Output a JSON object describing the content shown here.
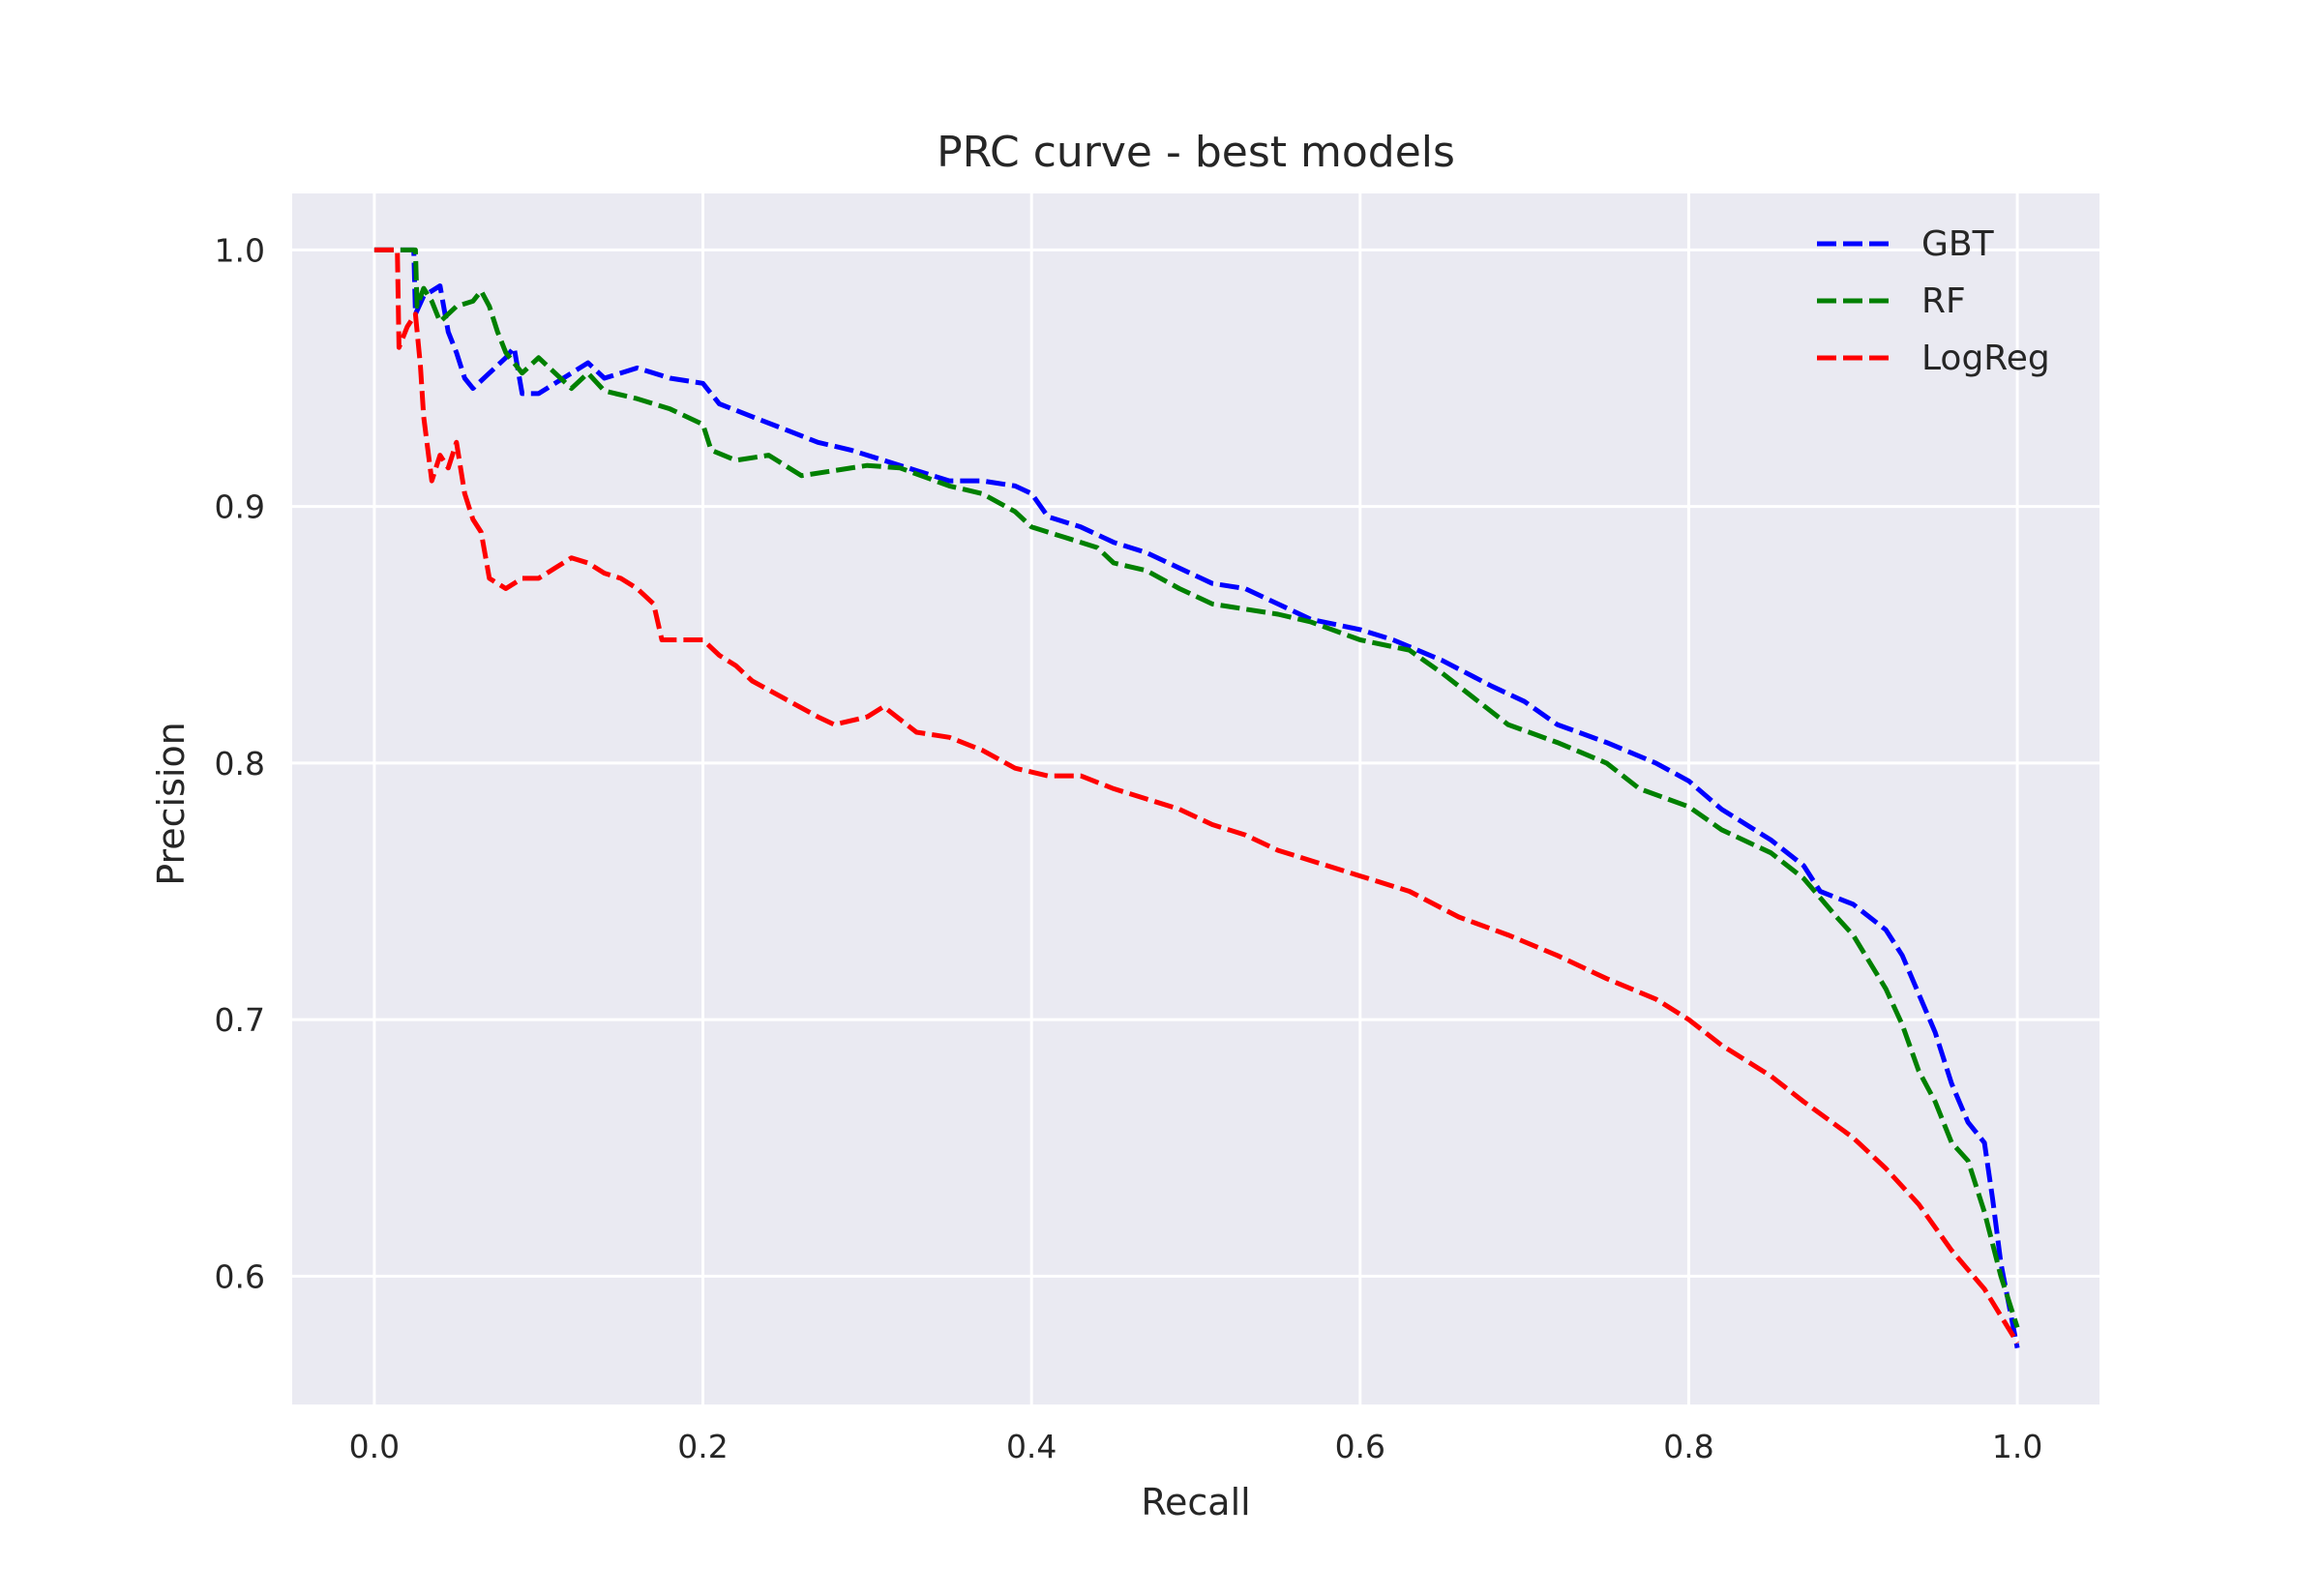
{
  "chart_data": {
    "type": "line",
    "title": "PRC curve - best models",
    "xlabel": "Recall",
    "ylabel": "Precision",
    "xlim": [
      -0.05,
      1.05
    ],
    "ylim": [
      0.55,
      1.022
    ],
    "xticks": [
      "0.0",
      "0.2",
      "0.4",
      "0.6",
      "0.8",
      "1.0"
    ],
    "xtick_values": [
      0.0,
      0.2,
      0.4,
      0.6,
      0.8,
      1.0
    ],
    "yticks": [
      "0.6",
      "0.7",
      "0.8",
      "0.9",
      "1.0"
    ],
    "ytick_values": [
      0.6,
      0.7,
      0.8,
      0.9,
      1.0
    ],
    "grid": true,
    "legend_position": "top-right",
    "plot_background": "#eaeaf2",
    "series": [
      {
        "name": "GBT",
        "color": "#0000ff",
        "style": "dashed",
        "points": [
          [
            0.0,
            1.0
          ],
          [
            0.024,
            1.0
          ],
          [
            0.025,
            0.975
          ],
          [
            0.03,
            0.982
          ],
          [
            0.04,
            0.986
          ],
          [
            0.045,
            0.968
          ],
          [
            0.05,
            0.96
          ],
          [
            0.055,
            0.95
          ],
          [
            0.06,
            0.946
          ],
          [
            0.07,
            0.952
          ],
          [
            0.08,
            0.958
          ],
          [
            0.085,
            0.962
          ],
          [
            0.09,
            0.944
          ],
          [
            0.1,
            0.944
          ],
          [
            0.11,
            0.948
          ],
          [
            0.13,
            0.956
          ],
          [
            0.14,
            0.95
          ],
          [
            0.16,
            0.954
          ],
          [
            0.18,
            0.95
          ],
          [
            0.2,
            0.948
          ],
          [
            0.21,
            0.94
          ],
          [
            0.23,
            0.935
          ],
          [
            0.25,
            0.93
          ],
          [
            0.27,
            0.925
          ],
          [
            0.29,
            0.922
          ],
          [
            0.31,
            0.918
          ],
          [
            0.33,
            0.914
          ],
          [
            0.35,
            0.91
          ],
          [
            0.37,
            0.91
          ],
          [
            0.39,
            0.908
          ],
          [
            0.4,
            0.905
          ],
          [
            0.41,
            0.896
          ],
          [
            0.43,
            0.892
          ],
          [
            0.45,
            0.886
          ],
          [
            0.47,
            0.882
          ],
          [
            0.49,
            0.876
          ],
          [
            0.51,
            0.87
          ],
          [
            0.53,
            0.868
          ],
          [
            0.55,
            0.862
          ],
          [
            0.57,
            0.856
          ],
          [
            0.6,
            0.852
          ],
          [
            0.62,
            0.848
          ],
          [
            0.65,
            0.84
          ],
          [
            0.68,
            0.83
          ],
          [
            0.7,
            0.824
          ],
          [
            0.72,
            0.815
          ],
          [
            0.75,
            0.808
          ],
          [
            0.78,
            0.8
          ],
          [
            0.8,
            0.793
          ],
          [
            0.82,
            0.782
          ],
          [
            0.85,
            0.77
          ],
          [
            0.87,
            0.76
          ],
          [
            0.88,
            0.75
          ],
          [
            0.9,
            0.745
          ],
          [
            0.92,
            0.735
          ],
          [
            0.93,
            0.725
          ],
          [
            0.94,
            0.71
          ],
          [
            0.95,
            0.695
          ],
          [
            0.96,
            0.675
          ],
          [
            0.97,
            0.66
          ],
          [
            0.98,
            0.652
          ],
          [
            0.985,
            0.63
          ],
          [
            0.99,
            0.605
          ],
          [
            1.0,
            0.572
          ]
        ]
      },
      {
        "name": "RF",
        "color": "#008000",
        "style": "dashed",
        "points": [
          [
            0.0,
            1.0
          ],
          [
            0.025,
            1.0
          ],
          [
            0.026,
            0.978
          ],
          [
            0.03,
            0.985
          ],
          [
            0.035,
            0.98
          ],
          [
            0.04,
            0.972
          ],
          [
            0.05,
            0.978
          ],
          [
            0.06,
            0.98
          ],
          [
            0.065,
            0.984
          ],
          [
            0.07,
            0.978
          ],
          [
            0.075,
            0.968
          ],
          [
            0.08,
            0.96
          ],
          [
            0.09,
            0.952
          ],
          [
            0.1,
            0.958
          ],
          [
            0.11,
            0.952
          ],
          [
            0.12,
            0.946
          ],
          [
            0.13,
            0.952
          ],
          [
            0.14,
            0.945
          ],
          [
            0.16,
            0.942
          ],
          [
            0.18,
            0.938
          ],
          [
            0.2,
            0.932
          ],
          [
            0.205,
            0.922
          ],
          [
            0.22,
            0.918
          ],
          [
            0.24,
            0.92
          ],
          [
            0.26,
            0.912
          ],
          [
            0.28,
            0.914
          ],
          [
            0.3,
            0.916
          ],
          [
            0.32,
            0.915
          ],
          [
            0.35,
            0.908
          ],
          [
            0.37,
            0.905
          ],
          [
            0.39,
            0.898
          ],
          [
            0.4,
            0.892
          ],
          [
            0.42,
            0.888
          ],
          [
            0.44,
            0.884
          ],
          [
            0.45,
            0.878
          ],
          [
            0.47,
            0.875
          ],
          [
            0.49,
            0.868
          ],
          [
            0.51,
            0.862
          ],
          [
            0.53,
            0.86
          ],
          [
            0.55,
            0.858
          ],
          [
            0.57,
            0.855
          ],
          [
            0.6,
            0.848
          ],
          [
            0.63,
            0.844
          ],
          [
            0.65,
            0.835
          ],
          [
            0.67,
            0.825
          ],
          [
            0.69,
            0.815
          ],
          [
            0.72,
            0.808
          ],
          [
            0.75,
            0.8
          ],
          [
            0.77,
            0.79
          ],
          [
            0.8,
            0.783
          ],
          [
            0.82,
            0.774
          ],
          [
            0.85,
            0.765
          ],
          [
            0.87,
            0.755
          ],
          [
            0.89,
            0.74
          ],
          [
            0.9,
            0.733
          ],
          [
            0.92,
            0.712
          ],
          [
            0.93,
            0.698
          ],
          [
            0.94,
            0.68
          ],
          [
            0.95,
            0.668
          ],
          [
            0.96,
            0.652
          ],
          [
            0.97,
            0.645
          ],
          [
            0.98,
            0.625
          ],
          [
            0.99,
            0.6
          ],
          [
            1.0,
            0.58
          ]
        ]
      },
      {
        "name": "LogReg",
        "color": "#ff0000",
        "style": "dashed",
        "points": [
          [
            0.0,
            1.0
          ],
          [
            0.014,
            1.0
          ],
          [
            0.015,
            0.962
          ],
          [
            0.02,
            0.97
          ],
          [
            0.025,
            0.975
          ],
          [
            0.028,
            0.955
          ],
          [
            0.03,
            0.935
          ],
          [
            0.035,
            0.91
          ],
          [
            0.04,
            0.92
          ],
          [
            0.045,
            0.915
          ],
          [
            0.05,
            0.925
          ],
          [
            0.055,
            0.905
          ],
          [
            0.06,
            0.895
          ],
          [
            0.065,
            0.89
          ],
          [
            0.07,
            0.872
          ],
          [
            0.08,
            0.868
          ],
          [
            0.09,
            0.872
          ],
          [
            0.1,
            0.872
          ],
          [
            0.11,
            0.876
          ],
          [
            0.12,
            0.88
          ],
          [
            0.13,
            0.878
          ],
          [
            0.14,
            0.874
          ],
          [
            0.15,
            0.872
          ],
          [
            0.16,
            0.868
          ],
          [
            0.17,
            0.862
          ],
          [
            0.175,
            0.848
          ],
          [
            0.19,
            0.848
          ],
          [
            0.2,
            0.848
          ],
          [
            0.21,
            0.842
          ],
          [
            0.22,
            0.838
          ],
          [
            0.23,
            0.832
          ],
          [
            0.25,
            0.825
          ],
          [
            0.27,
            0.818
          ],
          [
            0.28,
            0.815
          ],
          [
            0.3,
            0.818
          ],
          [
            0.31,
            0.822
          ],
          [
            0.33,
            0.812
          ],
          [
            0.35,
            0.81
          ],
          [
            0.37,
            0.805
          ],
          [
            0.39,
            0.798
          ],
          [
            0.41,
            0.795
          ],
          [
            0.43,
            0.795
          ],
          [
            0.45,
            0.79
          ],
          [
            0.47,
            0.786
          ],
          [
            0.49,
            0.782
          ],
          [
            0.51,
            0.776
          ],
          [
            0.53,
            0.772
          ],
          [
            0.55,
            0.766
          ],
          [
            0.57,
            0.762
          ],
          [
            0.6,
            0.756
          ],
          [
            0.63,
            0.75
          ],
          [
            0.66,
            0.74
          ],
          [
            0.69,
            0.733
          ],
          [
            0.72,
            0.725
          ],
          [
            0.75,
            0.716
          ],
          [
            0.78,
            0.708
          ],
          [
            0.8,
            0.7
          ],
          [
            0.82,
            0.69
          ],
          [
            0.85,
            0.678
          ],
          [
            0.87,
            0.668
          ],
          [
            0.9,
            0.654
          ],
          [
            0.92,
            0.642
          ],
          [
            0.94,
            0.628
          ],
          [
            0.96,
            0.61
          ],
          [
            0.98,
            0.595
          ],
          [
            1.0,
            0.574
          ]
        ]
      }
    ]
  }
}
